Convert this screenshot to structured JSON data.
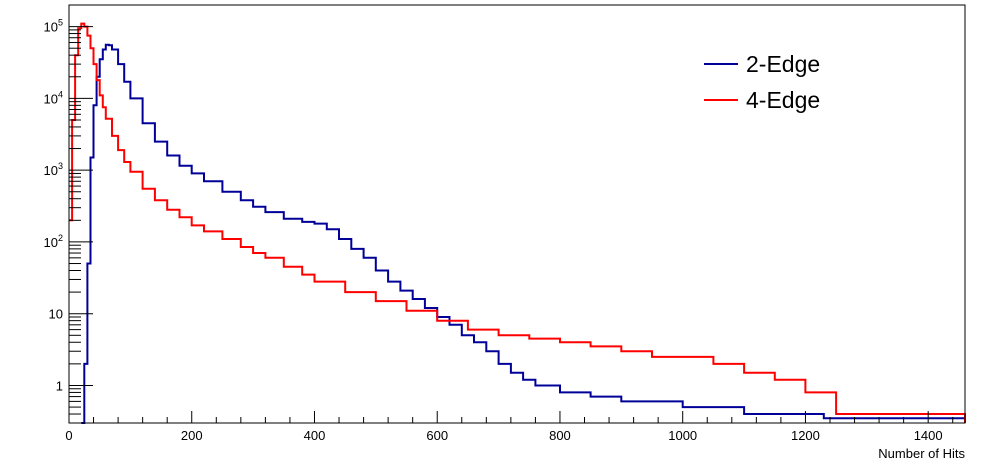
{
  "chart_data": {
    "type": "line",
    "title": "",
    "xlabel": "Number of Hits",
    "ylabel": "",
    "x_scale": "linear",
    "y_scale": "log",
    "xlim": [
      0,
      1460
    ],
    "ylim": [
      0.3,
      200000
    ],
    "x_ticks": [
      0,
      200,
      400,
      600,
      800,
      1000,
      1200,
      1400
    ],
    "x_tick_labels": [
      "0",
      "200",
      "400",
      "600",
      "800",
      "1000",
      "1200",
      "1400"
    ],
    "y_ticks": [
      1,
      10,
      100,
      1000,
      10000,
      100000
    ],
    "y_tick_labels": [
      {
        "base": "1",
        "exp": ""
      },
      {
        "base": "10",
        "exp": ""
      },
      {
        "base": "10",
        "exp": "2"
      },
      {
        "base": "10",
        "exp": "3"
      },
      {
        "base": "10",
        "exp": "4"
      },
      {
        "base": "10",
        "exp": "5"
      }
    ],
    "grid": false,
    "legend_position": "top-right",
    "series": [
      {
        "name": "2-Edge",
        "color": "#000099",
        "x": [
          20,
          25,
          30,
          35,
          40,
          45,
          50,
          55,
          60,
          65,
          70,
          80,
          90,
          100,
          120,
          140,
          160,
          180,
          200,
          220,
          250,
          280,
          300,
          320,
          350,
          380,
          400,
          420,
          440,
          460,
          480,
          500,
          520,
          540,
          560,
          580,
          600,
          620,
          640,
          660,
          680,
          700,
          720,
          740,
          760,
          800,
          850,
          900,
          950,
          1000,
          1050,
          1100,
          1150,
          1200,
          1230,
          1460
        ],
        "y": [
          0.3,
          2,
          50,
          1500,
          8000,
          20000,
          35000,
          48000,
          56000,
          55000,
          48000,
          30000,
          17000,
          10000,
          4500,
          2500,
          1600,
          1150,
          900,
          700,
          500,
          380,
          310,
          260,
          210,
          190,
          180,
          150,
          110,
          80,
          60,
          40,
          28,
          21,
          16,
          12,
          9,
          7,
          5,
          4,
          3,
          2,
          1.5,
          1.2,
          1,
          0.8,
          0.7,
          0.6,
          0.6,
          0.5,
          0.5,
          0.4,
          0.4,
          0.4,
          0.35,
          0.3
        ]
      },
      {
        "name": "4-Edge",
        "color": "#ff0000",
        "x": [
          0,
          5,
          10,
          15,
          20,
          25,
          30,
          35,
          40,
          45,
          50,
          55,
          60,
          70,
          80,
          90,
          100,
          120,
          140,
          160,
          180,
          200,
          220,
          250,
          280,
          300,
          320,
          350,
          380,
          400,
          450,
          500,
          550,
          600,
          650,
          700,
          750,
          800,
          850,
          900,
          950,
          1000,
          1050,
          1100,
          1150,
          1200,
          1250,
          1460
        ],
        "y": [
          200,
          5000,
          40000,
          95000,
          110000,
          100000,
          75000,
          50000,
          30000,
          18000,
          11000,
          7500,
          5200,
          3000,
          1900,
          1300,
          950,
          550,
          380,
          280,
          220,
          170,
          140,
          110,
          85,
          70,
          60,
          45,
          35,
          28,
          20,
          15,
          11,
          8,
          6,
          5,
          4.5,
          4,
          3.5,
          3,
          2.5,
          2.5,
          2,
          1.5,
          1.2,
          0.8,
          0.4,
          0.3
        ]
      }
    ]
  }
}
